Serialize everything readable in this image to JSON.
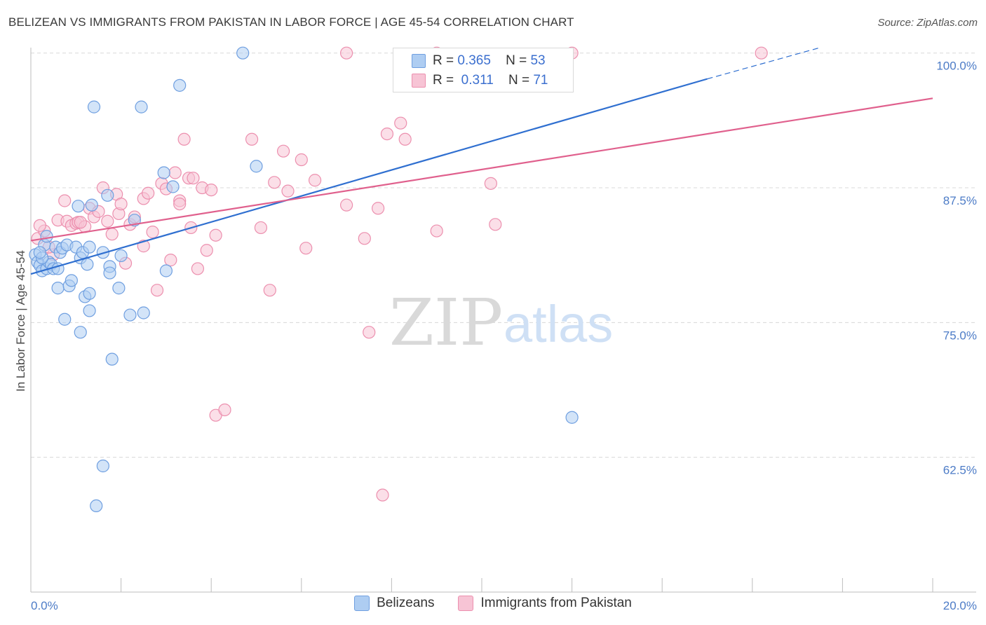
{
  "title": "BELIZEAN VS IMMIGRANTS FROM PAKISTAN IN LABOR FORCE | AGE 45-54 CORRELATION CHART",
  "source": "Source: ZipAtlas.com",
  "watermark": {
    "zip": "ZIP",
    "atlas": "atlas"
  },
  "legend": {
    "rows": [
      {
        "r_label": "R =",
        "r_value": "0.365",
        "n_label": "N =",
        "n_value": "53"
      },
      {
        "r_label": "R =",
        "r_value": " 0.311",
        "n_label": "N =",
        "n_value": "71"
      }
    ]
  },
  "colors": {
    "blue_fill": "#aecdf2",
    "blue_stroke": "#6f9fe0",
    "blue_line": "#2f6fd0",
    "pink_fill": "#f7c4d5",
    "pink_stroke": "#ec8fae",
    "pink_line": "#e0608d",
    "grid": "#d8d8d8",
    "axis_text": "#4d7cc7"
  },
  "chart_data": {
    "type": "scatter",
    "title": "BELIZEAN VS IMMIGRANTS FROM PAKISTAN IN LABOR FORCE | AGE 45-54 CORRELATION CHART",
    "xlabel": "",
    "ylabel": "In Labor Force | Age 45-54",
    "xlim": [
      0,
      20
    ],
    "ylim": [
      50,
      100.5
    ],
    "x_tick_labels": [
      "0.0%",
      "20.0%"
    ],
    "y_ticks": [
      62.5,
      75.0,
      87.5,
      100.0
    ],
    "y_tick_labels": [
      "62.5%",
      "75.0%",
      "87.5%",
      "100.0%"
    ],
    "grid": true,
    "series": [
      {
        "name": "Belizeans",
        "r": 0.365,
        "n": 53,
        "trend": {
          "x0": 0.0,
          "y0": 79.5,
          "x1": 15.0,
          "y1": 97.6,
          "dash_to_x": 17.5,
          "dash_to_y": 100.5
        },
        "points": [
          [
            0.1,
            81.3
          ],
          [
            0.15,
            80.6
          ],
          [
            0.2,
            80.3
          ],
          [
            0.25,
            79.8
          ],
          [
            0.3,
            82.2
          ],
          [
            0.35,
            80.0
          ],
          [
            0.4,
            80.6
          ],
          [
            0.45,
            80.4
          ],
          [
            0.5,
            80.0
          ],
          [
            0.55,
            82.0
          ],
          [
            0.6,
            78.2
          ],
          [
            0.65,
            81.5
          ],
          [
            0.7,
            81.9
          ],
          [
            0.75,
            75.3
          ],
          [
            0.8,
            82.2
          ],
          [
            0.85,
            78.4
          ],
          [
            0.9,
            78.9
          ],
          [
            1.0,
            82.0
          ],
          [
            1.05,
            85.8
          ],
          [
            1.1,
            81.0
          ],
          [
            1.15,
            81.5
          ],
          [
            1.2,
            77.4
          ],
          [
            1.25,
            80.4
          ],
          [
            1.3,
            77.7
          ],
          [
            1.3,
            76.1
          ],
          [
            1.35,
            85.9
          ],
          [
            1.4,
            95.0
          ],
          [
            1.6,
            81.5
          ],
          [
            1.7,
            86.8
          ],
          [
            1.75,
            80.2
          ],
          [
            1.75,
            79.6
          ],
          [
            1.8,
            71.6
          ],
          [
            1.95,
            78.2
          ],
          [
            2.0,
            81.2
          ],
          [
            2.2,
            75.7
          ],
          [
            2.3,
            84.5
          ],
          [
            2.45,
            95.0
          ],
          [
            2.5,
            75.9
          ],
          [
            2.95,
            88.9
          ],
          [
            3.0,
            79.8
          ],
          [
            3.15,
            87.6
          ],
          [
            3.3,
            97.0
          ],
          [
            4.7,
            100.0
          ],
          [
            5.0,
            89.5
          ],
          [
            1.45,
            58.0
          ],
          [
            1.6,
            61.7
          ],
          [
            12.0,
            66.2
          ],
          [
            1.1,
            74.1
          ],
          [
            0.35,
            83.0
          ],
          [
            0.25,
            81.0
          ],
          [
            0.6,
            80.0
          ],
          [
            1.3,
            82.0
          ],
          [
            0.2,
            81.5
          ]
        ]
      },
      {
        "name": "Immigrants from Pakistan",
        "r": 0.311,
        "n": 71,
        "trend": {
          "x0": 0.0,
          "y0": 82.6,
          "x1": 20.0,
          "y1": 95.8
        },
        "points": [
          [
            0.15,
            82.8
          ],
          [
            0.3,
            83.5
          ],
          [
            0.5,
            81.3
          ],
          [
            0.6,
            84.5
          ],
          [
            0.75,
            86.3
          ],
          [
            0.8,
            84.4
          ],
          [
            0.9,
            84.0
          ],
          [
            1.0,
            84.2
          ],
          [
            1.05,
            84.3
          ],
          [
            1.2,
            83.9
          ],
          [
            1.3,
            85.6
          ],
          [
            1.4,
            84.8
          ],
          [
            1.5,
            85.3
          ],
          [
            1.6,
            87.5
          ],
          [
            1.7,
            84.4
          ],
          [
            1.8,
            83.2
          ],
          [
            1.9,
            86.9
          ],
          [
            1.95,
            85.1
          ],
          [
            2.1,
            80.5
          ],
          [
            2.2,
            84.1
          ],
          [
            2.3,
            84.8
          ],
          [
            2.5,
            82.1
          ],
          [
            2.5,
            86.5
          ],
          [
            2.6,
            87.0
          ],
          [
            2.7,
            83.4
          ],
          [
            2.8,
            78.0
          ],
          [
            2.9,
            87.9
          ],
          [
            3.0,
            87.4
          ],
          [
            3.1,
            80.8
          ],
          [
            3.2,
            88.9
          ],
          [
            3.3,
            86.3
          ],
          [
            3.4,
            92.0
          ],
          [
            3.5,
            88.4
          ],
          [
            3.55,
            83.8
          ],
          [
            3.6,
            88.4
          ],
          [
            3.7,
            80.0
          ],
          [
            3.8,
            87.5
          ],
          [
            3.9,
            81.7
          ],
          [
            4.0,
            87.3
          ],
          [
            4.1,
            83.1
          ],
          [
            4.1,
            66.4
          ],
          [
            4.3,
            66.9
          ],
          [
            4.9,
            92.0
          ],
          [
            5.1,
            83.8
          ],
          [
            5.3,
            78.0
          ],
          [
            5.4,
            88.0
          ],
          [
            5.6,
            90.9
          ],
          [
            5.7,
            87.2
          ],
          [
            6.0,
            90.1
          ],
          [
            6.1,
            81.9
          ],
          [
            6.3,
            88.2
          ],
          [
            7.0,
            85.9
          ],
          [
            7.0,
            100.0
          ],
          [
            7.4,
            82.8
          ],
          [
            7.5,
            74.1
          ],
          [
            7.7,
            85.6
          ],
          [
            7.8,
            59.0
          ],
          [
            7.9,
            92.5
          ],
          [
            8.2,
            93.5
          ],
          [
            8.3,
            92.0
          ],
          [
            9.0,
            100.0
          ],
          [
            12.0,
            100.0
          ],
          [
            9.0,
            83.5
          ],
          [
            10.2,
            87.9
          ],
          [
            10.3,
            84.1
          ],
          [
            16.2,
            100.0
          ],
          [
            0.2,
            84.0
          ],
          [
            0.4,
            82.0
          ],
          [
            1.1,
            84.3
          ],
          [
            3.3,
            86.0
          ],
          [
            2.0,
            86.0
          ]
        ]
      }
    ]
  },
  "bottom_legend": [
    "Belizeans",
    "Immigrants from Pakistan"
  ]
}
